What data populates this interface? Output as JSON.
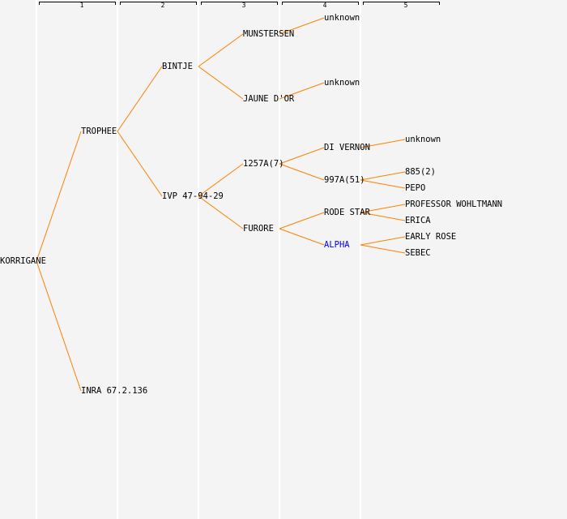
{
  "generations": [
    "1",
    "2",
    "3",
    "4",
    "5"
  ],
  "colors": {
    "line": "#ff8000",
    "text": "#000000",
    "highlight": "#0000ff",
    "background": "#f4f4f4"
  },
  "tree": {
    "name": "KORRIGANE",
    "parents": [
      {
        "name": "TROPHEE",
        "parents": [
          {
            "name": "BINTJE",
            "parents": [
              {
                "name": "MUNSTERSEN",
                "parents": [
                  {
                    "name": "unknown"
                  }
                ]
              },
              {
                "name": "JAUNE D'OR",
                "parents": [
                  {
                    "name": "unknown"
                  }
                ]
              }
            ]
          },
          {
            "name": "IVP 47-94-29",
            "parents": [
              {
                "name": "1257A(7)",
                "parents": [
                  {
                    "name": "DI VERNON",
                    "parents": [
                      {
                        "name": "unknown"
                      }
                    ]
                  },
                  {
                    "name": "997A(51)",
                    "parents": [
                      {
                        "name": "885(2)"
                      },
                      {
                        "name": "PEPO"
                      }
                    ]
                  }
                ]
              },
              {
                "name": "FURORE",
                "parents": [
                  {
                    "name": "RODE STAR",
                    "parents": [
                      {
                        "name": "PROFESSOR WOHLTMANN"
                      },
                      {
                        "name": "ERICA"
                      }
                    ]
                  },
                  {
                    "name": "ALPHA",
                    "highlight": true,
                    "parents": [
                      {
                        "name": "EARLY ROSE"
                      },
                      {
                        "name": "SEBEC"
                      }
                    ]
                  }
                ]
              }
            ]
          }
        ]
      },
      {
        "name": "INRA 67.2.136"
      }
    ]
  }
}
